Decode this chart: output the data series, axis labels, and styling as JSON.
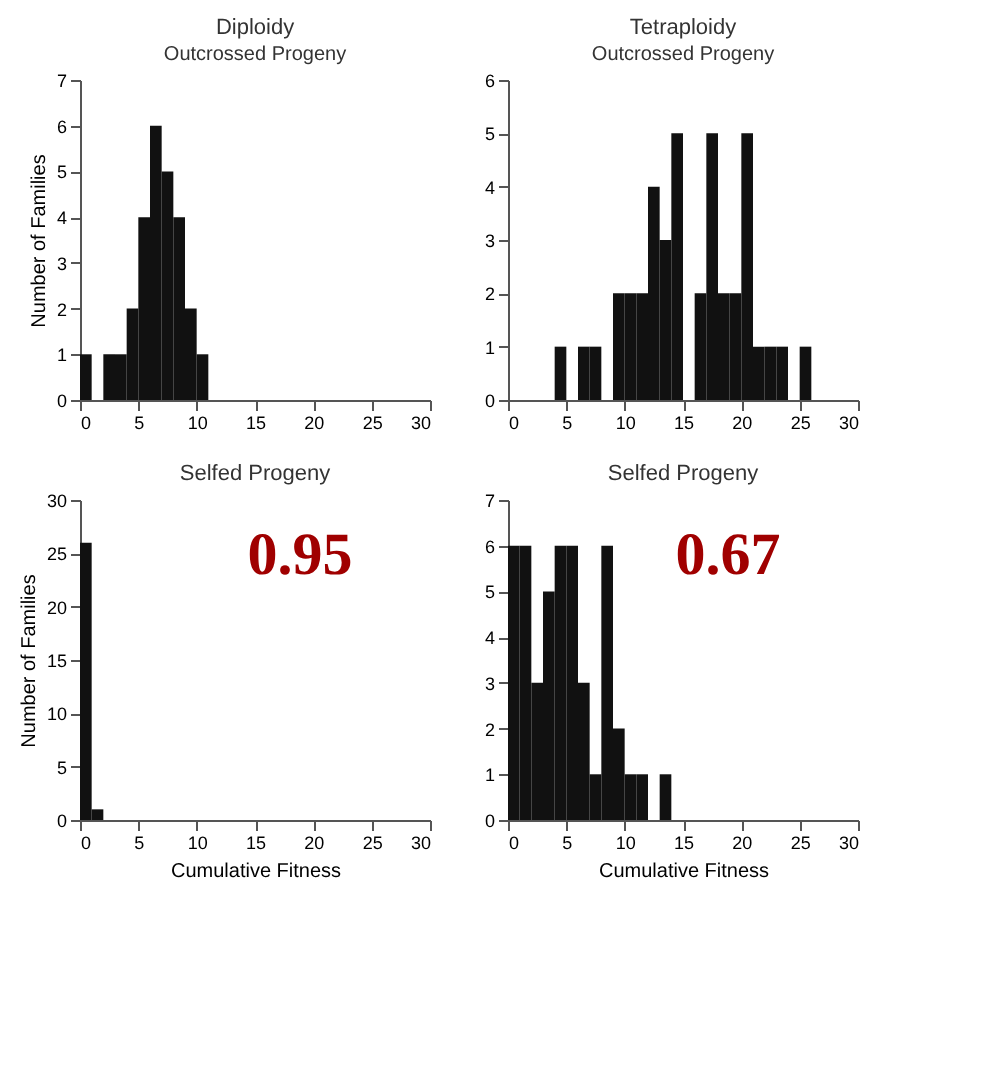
{
  "chart_data": [
    {
      "type": "histogram",
      "title": "Diploidy",
      "subtitle": "Outcrossed Progeny",
      "ylabel": "Number of Families",
      "bins": [
        0,
        1,
        2,
        3,
        4,
        5,
        6,
        7,
        8,
        9,
        10,
        11
      ],
      "values": [
        1,
        0,
        1,
        1,
        2,
        4,
        6,
        5,
        4,
        2,
        1
      ],
      "color": "#111111",
      "xlim": [
        0,
        30
      ],
      "xticks": [
        0,
        5,
        10,
        15,
        20,
        25,
        30
      ],
      "ylim": [
        0,
        7
      ],
      "yticks": [
        0,
        1,
        2,
        3,
        4,
        5,
        6,
        7
      ]
    },
    {
      "type": "histogram",
      "title": "Tetraploidy",
      "subtitle": "Outcrossed Progeny",
      "bins": [
        4,
        5,
        6,
        7,
        8,
        9,
        10,
        11,
        12,
        13,
        14,
        15,
        16,
        17,
        18,
        19,
        20,
        21,
        22,
        23,
        24,
        25,
        26
      ],
      "values": [
        1,
        0,
        1,
        1,
        0,
        2,
        2,
        2,
        4,
        3,
        5,
        0,
        2,
        5,
        2,
        2,
        5,
        1,
        1,
        1,
        0,
        1
      ],
      "color": "#111111",
      "xlim": [
        0,
        30
      ],
      "xticks": [
        0,
        5,
        10,
        15,
        20,
        25,
        30
      ],
      "ylim": [
        0,
        6
      ],
      "yticks": [
        0,
        1,
        2,
        3,
        4,
        5,
        6
      ]
    },
    {
      "type": "histogram",
      "title": "Selfed Progeny",
      "xlabel": "Cumulative Fitness",
      "ylabel": "Number of Families",
      "bins": [
        0,
        1,
        2
      ],
      "values": [
        26,
        1
      ],
      "color": "#111111",
      "xlim": [
        0,
        30
      ],
      "xticks": [
        0,
        5,
        10,
        15,
        20,
        25,
        30
      ],
      "ylim": [
        0,
        30
      ],
      "yticks": [
        0,
        5,
        10,
        15,
        20,
        25,
        30
      ],
      "annotations": [
        "0.95"
      ]
    },
    {
      "type": "histogram",
      "title": "Selfed Progeny",
      "xlabel": "Cumulative Fitness",
      "bins": [
        0,
        1,
        2,
        3,
        4,
        5,
        6,
        7,
        8,
        9,
        10,
        11,
        12,
        13,
        14
      ],
      "values": [
        6,
        6,
        3,
        5,
        6,
        6,
        3,
        1,
        6,
        2,
        1,
        1,
        0,
        1
      ],
      "color": "#111111",
      "xlim": [
        0,
        30
      ],
      "xticks": [
        0,
        5,
        10,
        15,
        20,
        25,
        30
      ],
      "ylim": [
        0,
        7
      ],
      "yticks": [
        0,
        1,
        2,
        3,
        4,
        5,
        6,
        7
      ],
      "annotations": [
        "0.67"
      ]
    }
  ]
}
